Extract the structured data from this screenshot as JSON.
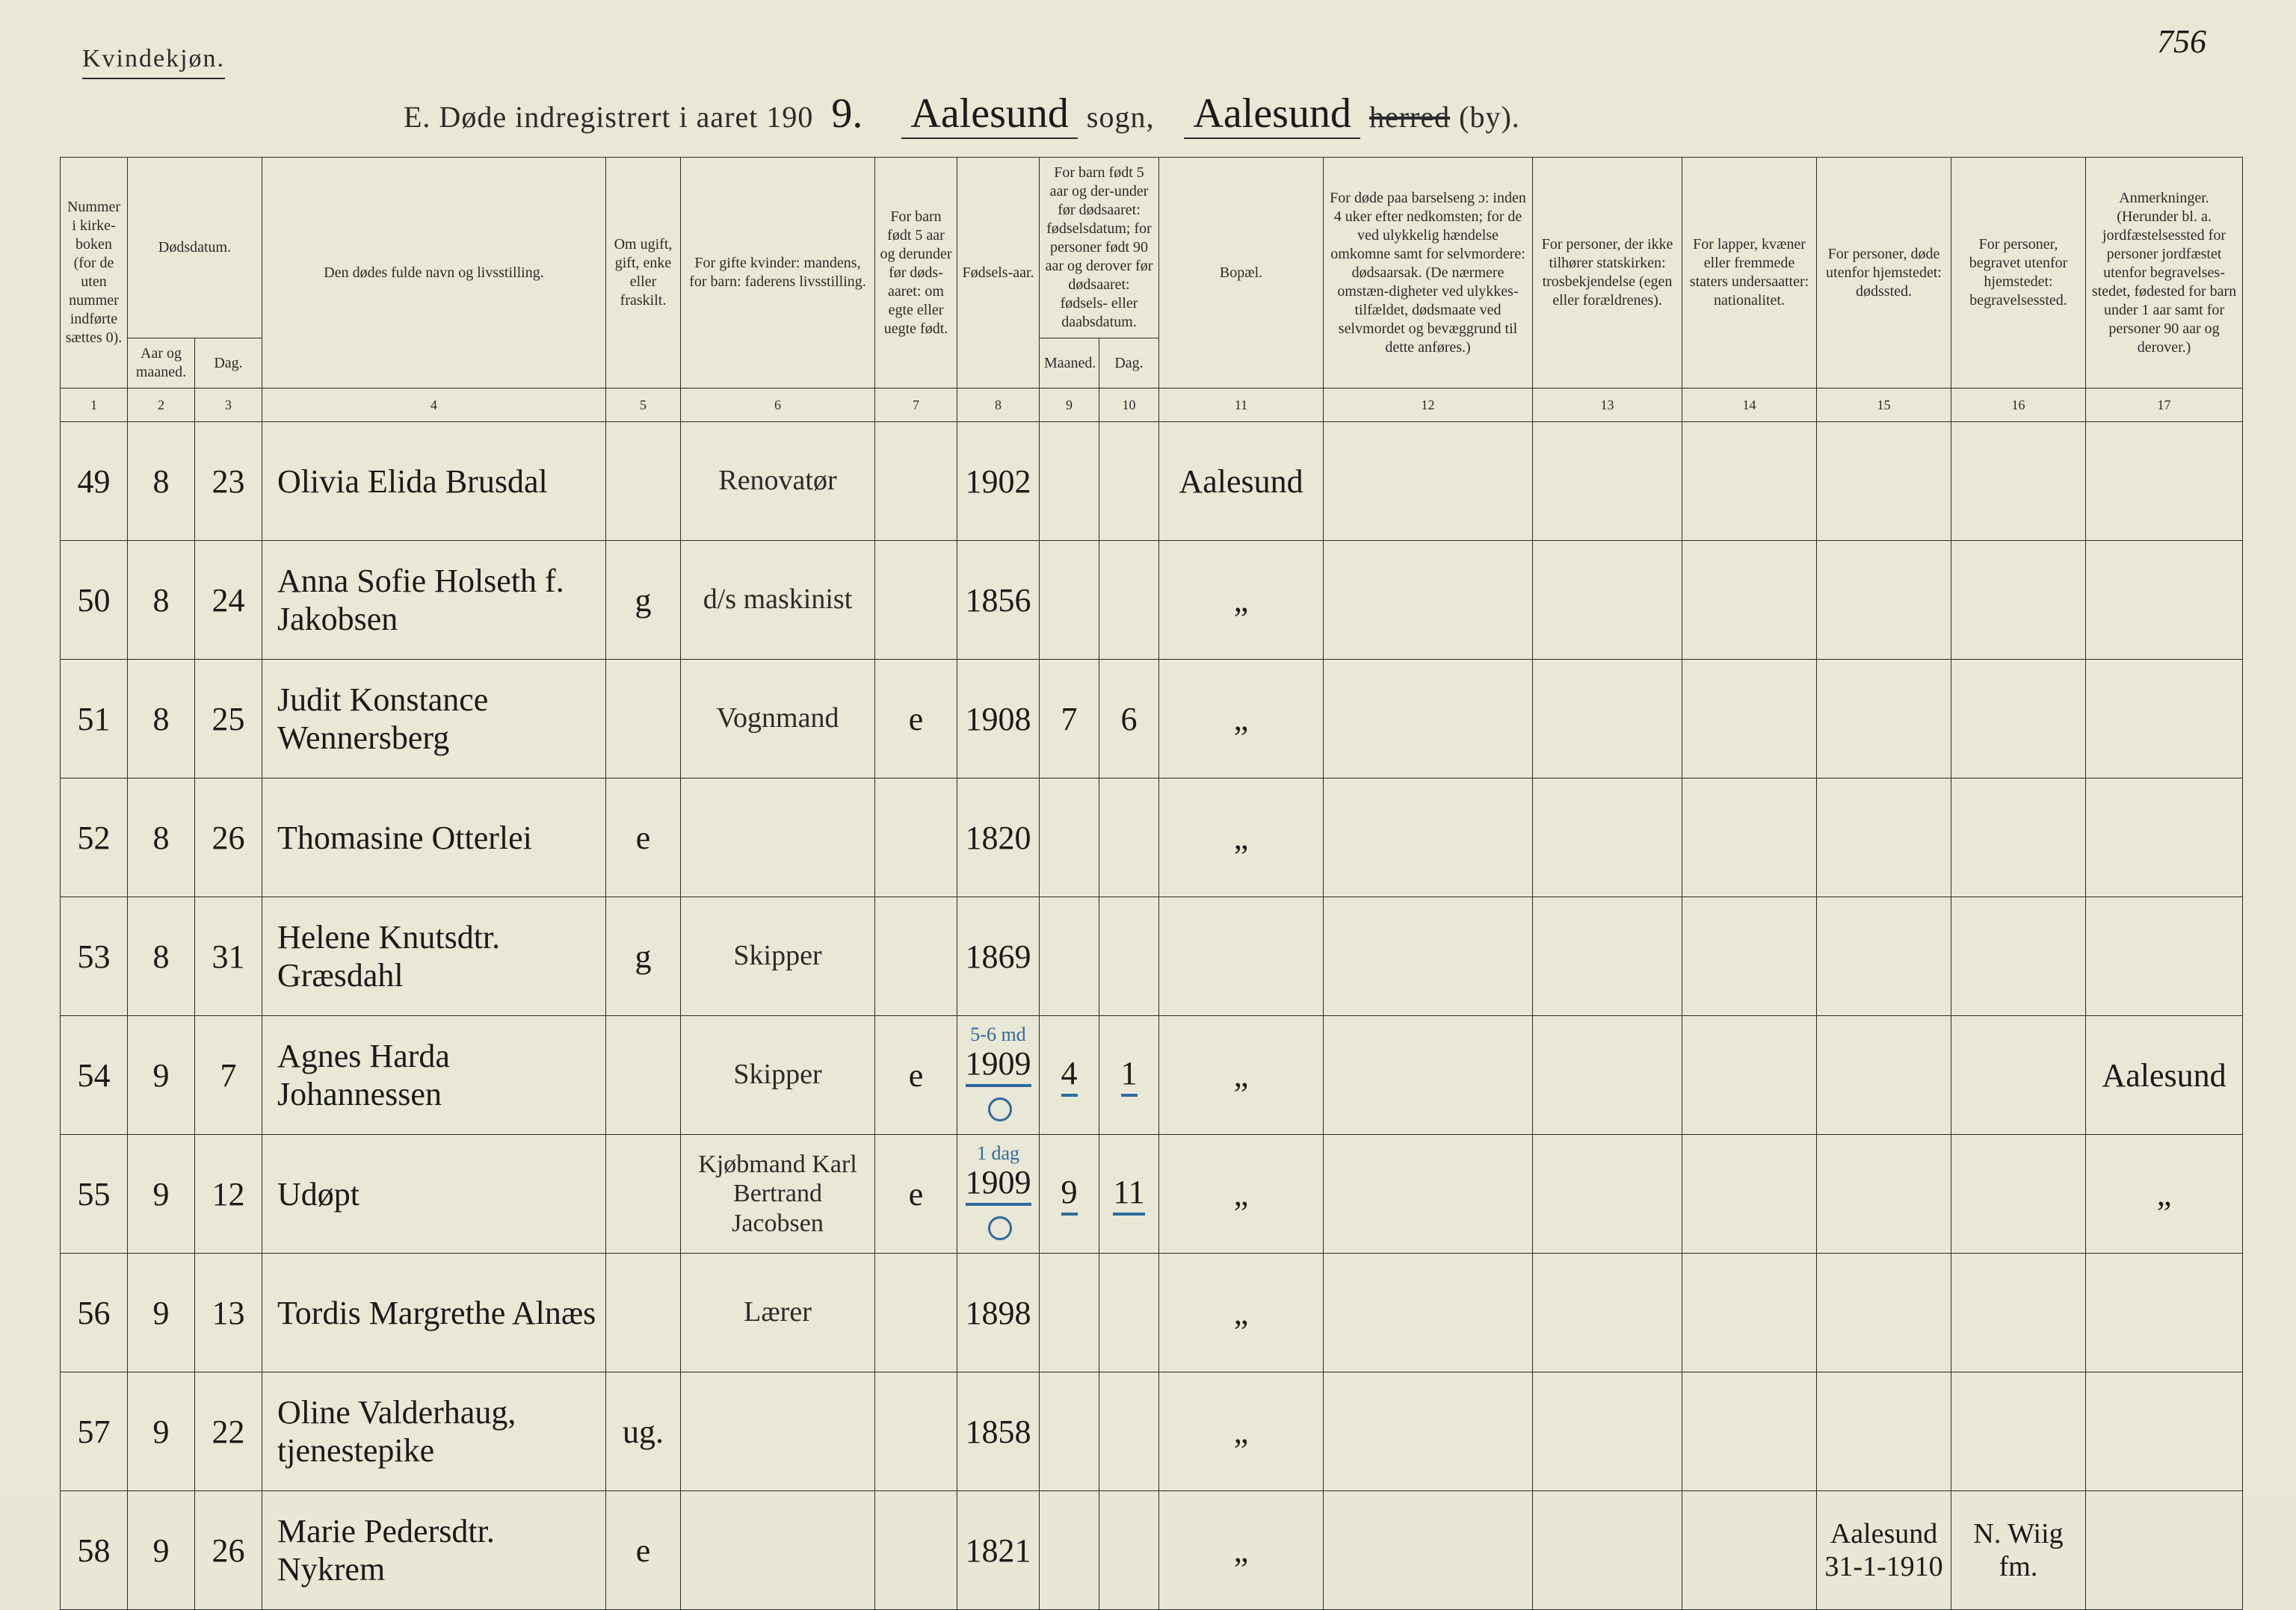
{
  "page_number_handwritten": "756",
  "top_left_label": "Kvindekjøn.",
  "title": {
    "prefix": "E.  Døde indregistrert i aaret 190",
    "year_suffix_hand": "9.",
    "sogn_hand": "Aalesund",
    "sogn_label": "sogn,",
    "herred_hand": "Aalesund",
    "herred_struck": "herred",
    "by_label": "(by)."
  },
  "headers": {
    "c1": "Nummer i kirke-boken (for de uten nummer indførte sættes 0).",
    "c2": "Dødsdatum.",
    "c2a": "Aar og maaned.",
    "c2b": "Dag.",
    "c4": "Den dødes fulde navn og livsstilling.",
    "c5": "Om ugift, gift, enke eller fraskilt.",
    "c6": "For gifte kvinder: mandens, for barn: faderens livsstilling.",
    "c7": "For barn født 5 aar og derunder før døds-aaret: om egte eller uegte født.",
    "c8": "Fødsels-aar.",
    "c9_10": "For barn født 5 aar og der-under før dødsaaret: fødselsdatum; for personer født 90 aar og derover før dødsaaret: fødsels- eller daabsdatum.",
    "c9": "Maaned.",
    "c10": "Dag.",
    "c11": "Bopæl.",
    "c12": "For døde paa barselseng ɔ: inden 4 uker efter nedkomsten; for de ved ulykkelig hændelse omkomne samt for selvmordere: dødsaarsak. (De nærmere omstæn-digheter ved ulykkes-tilfældet, dødsmaate ved selvmordet og bevæggrund til dette anføres.)",
    "c13": "For personer, der ikke tilhører statskirken: trosbekjendelse (egen eller forældrenes).",
    "c14": "For lapper, kvæner eller fremmede staters undersaatter: nationalitet.",
    "c15": "For personer, døde utenfor hjemstedet: dødssted.",
    "c16": "For personer, begravet utenfor hjemstedet: begravelsessted.",
    "c17": "Anmerkninger. (Herunder bl. a. jordfæstelsessted for personer jordfæstet utenfor begravelses-stedet, fødested for barn under 1 aar samt for personer 90 aar og derover.)"
  },
  "colnums": [
    "1",
    "2",
    "3",
    "4",
    "5",
    "6",
    "7",
    "8",
    "9",
    "10",
    "11",
    "12",
    "13",
    "14",
    "15",
    "16",
    "17"
  ],
  "rows": [
    {
      "num": "49",
      "mon": "8",
      "day": "23",
      "name": "Olivia Elida Brusdal",
      "civil": "",
      "father": "Renovatør",
      "legit": "",
      "byear": "1902",
      "bmon": "",
      "bday": "",
      "residence": "Aalesund",
      "c12": "",
      "c13": "",
      "c14": "",
      "c15": "",
      "c16": "",
      "c17": ""
    },
    {
      "num": "50",
      "mon": "8",
      "day": "24",
      "name": "Anna Sofie Holseth f. Jakobsen",
      "civil": "g",
      "father": "d/s maskinist",
      "legit": "",
      "byear": "1856",
      "bmon": "",
      "bday": "",
      "residence": "„",
      "c12": "",
      "c13": "",
      "c14": "",
      "c15": "",
      "c16": "",
      "c17": ""
    },
    {
      "num": "51",
      "mon": "8",
      "day": "25",
      "name": "Judit Konstance Wennersberg",
      "civil": "",
      "father": "Vognmand",
      "legit": "e",
      "byear": "1908",
      "bmon": "7",
      "bday": "6",
      "residence": "„",
      "c12": "",
      "c13": "",
      "c14": "",
      "c15": "",
      "c16": "",
      "c17": ""
    },
    {
      "num": "52",
      "mon": "8",
      "day": "26",
      "name": "Thomasine Otterlei",
      "civil": "e",
      "father": "",
      "legit": "",
      "byear": "1820",
      "bmon": "",
      "bday": "",
      "residence": "„",
      "c12": "",
      "c13": "",
      "c14": "",
      "c15": "",
      "c16": "",
      "c17": ""
    },
    {
      "num": "53",
      "mon": "8",
      "day": "31",
      "name": "Helene Knutsdtr. Græsdahl",
      "civil": "g",
      "father": "Skipper",
      "legit": "",
      "byear": "1869",
      "bmon": "",
      "bday": "",
      "residence": "",
      "c12": "",
      "c13": "",
      "c14": "",
      "c15": "",
      "c16": "",
      "c17": ""
    },
    {
      "num": "54",
      "mon": "9",
      "day": "7",
      "name": "Agnes Harda Johannessen",
      "civil": "",
      "father": "Skipper",
      "legit": "e",
      "byear": "1909",
      "byear_annot": "5-6 md",
      "byear_circle": true,
      "bmon": "4",
      "bday": "1",
      "residence": "„",
      "c12": "",
      "c13": "",
      "c14": "",
      "c15": "",
      "c16": "",
      "c17": "Aalesund",
      "underline_blue": true
    },
    {
      "num": "55",
      "mon": "9",
      "day": "12",
      "name": "Udøpt",
      "civil": "",
      "father": "Kjøbmand Karl Bertrand Jacobsen",
      "legit": "e",
      "byear": "1909",
      "byear_annot": "1 dag",
      "byear_circle": true,
      "bmon": "9",
      "bday": "11",
      "residence": "„",
      "c12": "",
      "c13": "",
      "c14": "",
      "c15": "",
      "c16": "",
      "c17": "„",
      "underline_blue": true
    },
    {
      "num": "56",
      "mon": "9",
      "day": "13",
      "name": "Tordis Margrethe Alnæs",
      "civil": "",
      "father": "Lærer",
      "legit": "",
      "byear": "1898",
      "bmon": "",
      "bday": "",
      "residence": "„",
      "c12": "",
      "c13": "",
      "c14": "",
      "c15": "",
      "c16": "",
      "c17": ""
    },
    {
      "num": "57",
      "mon": "9",
      "day": "22",
      "name": "Oline Valderhaug, tjenestepike",
      "civil": "ug.",
      "father": "",
      "legit": "",
      "byear": "1858",
      "bmon": "",
      "bday": "",
      "residence": "„",
      "c12": "",
      "c13": "",
      "c14": "",
      "c15": "",
      "c16": "",
      "c17": ""
    },
    {
      "num": "58",
      "mon": "9",
      "day": "26",
      "name": "Marie Pedersdtr. Nykrem",
      "civil": "e",
      "father": "",
      "legit": "",
      "byear": "1821",
      "bmon": "",
      "bday": "",
      "residence": "„",
      "c12": "",
      "c13": "",
      "c14": "",
      "c15": "Aalesund 31-1-1910",
      "c16": "N. Wiig fm.",
      "c17": ""
    }
  ]
}
